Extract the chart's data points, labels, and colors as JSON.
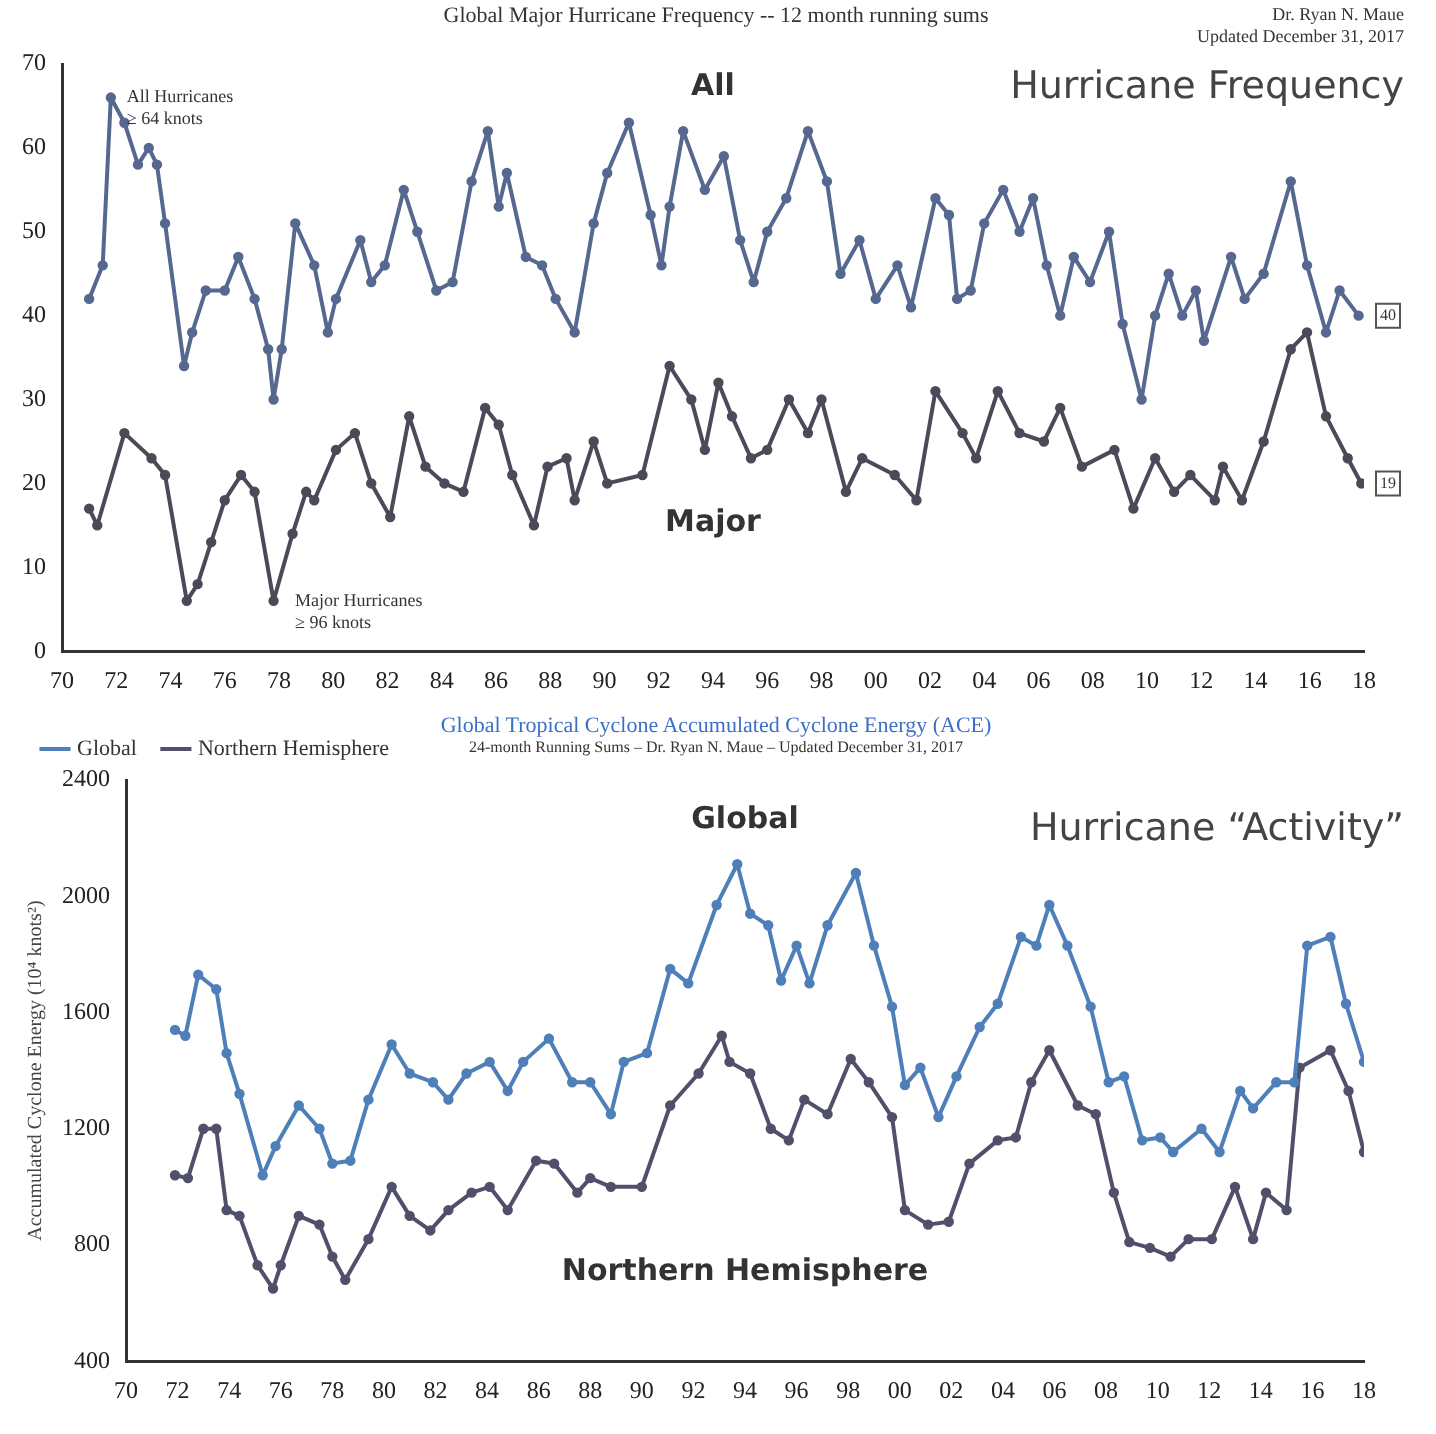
{
  "chart_data": [
    {
      "type": "line",
      "title": "Global Major Hurricane Frequency -- 12 month running sums",
      "marker": "circle",
      "line_style": "solid",
      "xlim": [
        1970,
        2018
      ],
      "xticks": [
        {
          "value": 1970,
          "label": "70"
        },
        {
          "value": 1972,
          "label": "72"
        },
        {
          "value": 1974,
          "label": "74"
        },
        {
          "value": 1976,
          "label": "76"
        },
        {
          "value": 1978,
          "label": "78"
        },
        {
          "value": 1980,
          "label": "80"
        },
        {
          "value": 1982,
          "label": "82"
        },
        {
          "value": 1984,
          "label": "84"
        },
        {
          "value": 1986,
          "label": "86"
        },
        {
          "value": 1988,
          "label": "88"
        },
        {
          "value": 1990,
          "label": "90"
        },
        {
          "value": 1992,
          "label": "92"
        },
        {
          "value": 1994,
          "label": "94"
        },
        {
          "value": 1996,
          "label": "96"
        },
        {
          "value": 1998,
          "label": "98"
        },
        {
          "value": 2000,
          "label": "00"
        },
        {
          "value": 2002,
          "label": "02"
        },
        {
          "value": 2004,
          "label": "04"
        },
        {
          "value": 2006,
          "label": "06"
        },
        {
          "value": 2008,
          "label": "08"
        },
        {
          "value": 2010,
          "label": "10"
        },
        {
          "value": 2012,
          "label": "12"
        },
        {
          "value": 2014,
          "label": "14"
        },
        {
          "value": 2016,
          "label": "16"
        },
        {
          "value": 2018,
          "label": "18"
        }
      ],
      "ylim": [
        0,
        70
      ],
      "yticks": [
        0,
        10,
        20,
        30,
        40,
        50,
        60,
        70
      ],
      "series": [
        {
          "name": "All",
          "color": "#56688f",
          "x": [
            1971.0,
            1971.5,
            1971.8,
            1972.3,
            1972.8,
            1973.2,
            1973.5,
            1973.8,
            1974.5,
            1974.8,
            1975.3,
            1976.0,
            1976.5,
            1977.1,
            1977.6,
            1977.8,
            1978.1,
            1978.6,
            1979.3,
            1979.8,
            1980.1,
            1981.0,
            1981.4,
            1981.9,
            1982.6,
            1983.1,
            1983.8,
            1984.4,
            1985.1,
            1985.7,
            1986.1,
            1986.4,
            1987.1,
            1987.7,
            1988.2,
            1988.9,
            1989.6,
            1990.1,
            1990.9,
            1991.7,
            1992.1,
            1992.4,
            1992.9,
            1993.7,
            1994.4,
            1995.0,
            1995.5,
            1996.0,
            1996.7,
            1997.5,
            1998.2,
            1998.7,
            1999.4,
            2000.0,
            2000.8,
            2001.3,
            2002.2,
            2002.7,
            2003.0,
            2003.5,
            2004.0,
            2004.7,
            2005.3,
            2005.8,
            2006.3,
            2006.8,
            2007.3,
            2007.9,
            2008.6,
            2009.1,
            2009.8,
            2010.3,
            2010.8,
            2011.3,
            2011.8,
            2012.1,
            2013.1,
            2013.6,
            2014.3,
            2015.3,
            2015.9,
            2016.6,
            2017.1,
            2017.8
          ],
          "values": [
            42,
            46,
            66,
            63,
            58,
            60,
            58,
            51,
            34,
            38,
            43,
            43,
            47,
            42,
            36,
            30,
            36,
            51,
            46,
            38,
            42,
            49,
            44,
            46,
            55,
            50,
            43,
            44,
            56,
            62,
            53,
            57,
            47,
            46,
            42,
            38,
            51,
            57,
            63,
            52,
            46,
            53,
            62,
            55,
            59,
            49,
            44,
            50,
            54,
            62,
            56,
            45,
            49,
            42,
            46,
            41,
            54,
            52,
            42,
            43,
            51,
            55,
            50,
            54,
            46,
            40,
            47,
            44,
            50,
            39,
            30,
            40,
            45,
            40,
            43,
            37,
            47,
            42,
            45,
            56,
            46,
            38,
            43,
            40
          ]
        },
        {
          "name": "Major",
          "color": "#4a4a58",
          "x": [
            1971.0,
            1971.3,
            1972.3,
            1973.3,
            1973.8,
            1974.6,
            1975.0,
            1975.5,
            1976.0,
            1976.6,
            1977.1,
            1977.8,
            1978.5,
            1979.0,
            1979.3,
            1980.1,
            1980.8,
            1981.4,
            1982.1,
            1982.8,
            1983.4,
            1984.1,
            1984.8,
            1985.6,
            1986.1,
            1986.6,
            1987.4,
            1987.9,
            1988.6,
            1988.9,
            1989.6,
            1990.1,
            1991.4,
            1992.4,
            1993.2,
            1993.7,
            1994.2,
            1994.7,
            1995.4,
            1996.0,
            1996.8,
            1997.5,
            1998.0,
            1998.9,
            1999.5,
            2000.7,
            2001.5,
            2002.2,
            2003.2,
            2003.7,
            2004.5,
            2005.3,
            2006.2,
            2006.8,
            2007.6,
            2008.8,
            2009.5,
            2010.3,
            2011.0,
            2011.6,
            2012.5,
            2012.8,
            2013.5,
            2014.3,
            2015.3,
            2015.9,
            2016.6,
            2017.4,
            2017.9
          ],
          "values": [
            17,
            15,
            26,
            23,
            21,
            6,
            8,
            13,
            18,
            21,
            19,
            6,
            14,
            19,
            18,
            24,
            26,
            20,
            16,
            28,
            22,
            20,
            19,
            29,
            27,
            21,
            15,
            22,
            23,
            18,
            25,
            20,
            21,
            34,
            30,
            24,
            32,
            28,
            23,
            24,
            30,
            26,
            30,
            19,
            23,
            21,
            18,
            31,
            26,
            23,
            31,
            26,
            25,
            29,
            22,
            24,
            17,
            23,
            19,
            21,
            18,
            22,
            18,
            25,
            36,
            38,
            28,
            23,
            20
          ]
        }
      ],
      "annotations": [
        {
          "text": "All Hurricanes\n≥ 64 knots",
          "x": 1971.8,
          "y": 66
        },
        {
          "text": "Major Hurricanes\n≥ 96 knots",
          "x": 1978,
          "y": 6
        },
        {
          "text": "40",
          "x": 2018,
          "y": 40
        },
        {
          "text": "19",
          "x": 2018,
          "y": 20
        },
        "Dr. Ryan N. Maue",
        "Updated December 31, 2017",
        "Hurricane Frequency"
      ]
    },
    {
      "type": "line",
      "title": "Global Tropical Cyclone Accumulated Cyclone Energy (ACE)",
      "subtitle": "24-month Running Sums – Dr. Ryan N. Maue – Updated December 31, 2017",
      "ylabel": "Accumulated Cyclone Energy (10⁴ knots²)",
      "marker": "circle",
      "line_style": "solid",
      "legend": "top left",
      "xlim": [
        1970,
        2018
      ],
      "xticks": [
        {
          "value": 1970,
          "label": "70"
        },
        {
          "value": 1972,
          "label": "72"
        },
        {
          "value": 1974,
          "label": "74"
        },
        {
          "value": 1976,
          "label": "76"
        },
        {
          "value": 1978,
          "label": "78"
        },
        {
          "value": 1980,
          "label": "80"
        },
        {
          "value": 1982,
          "label": "82"
        },
        {
          "value": 1984,
          "label": "84"
        },
        {
          "value": 1986,
          "label": "86"
        },
        {
          "value": 1988,
          "label": "88"
        },
        {
          "value": 1990,
          "label": "90"
        },
        {
          "value": 1992,
          "label": "92"
        },
        {
          "value": 1994,
          "label": "94"
        },
        {
          "value": 1996,
          "label": "96"
        },
        {
          "value": 1998,
          "label": "98"
        },
        {
          "value": 2000,
          "label": "00"
        },
        {
          "value": 2002,
          "label": "02"
        },
        {
          "value": 2004,
          "label": "04"
        },
        {
          "value": 2006,
          "label": "06"
        },
        {
          "value": 2008,
          "label": "08"
        },
        {
          "value": 2010,
          "label": "10"
        },
        {
          "value": 2012,
          "label": "12"
        },
        {
          "value": 2014,
          "label": "14"
        },
        {
          "value": 2016,
          "label": "16"
        },
        {
          "value": 2018,
          "label": "18"
        }
      ],
      "ylim": [
        400,
        2400
      ],
      "yticks": [
        400,
        800,
        1200,
        1600,
        2000,
        2400
      ],
      "series": [
        {
          "name": "Global",
          "color": "#4f7fb8",
          "x": [
            1971.9,
            1972.3,
            1972.8,
            1973.5,
            1973.9,
            1974.4,
            1975.3,
            1975.8,
            1976.7,
            1977.5,
            1978.0,
            1978.7,
            1979.4,
            1980.3,
            1981.0,
            1981.9,
            1982.5,
            1983.2,
            1984.1,
            1984.8,
            1985.4,
            1986.4,
            1987.3,
            1988.0,
            1988.8,
            1989.3,
            1990.2,
            1991.1,
            1991.8,
            1992.9,
            1993.7,
            1994.2,
            1994.9,
            1995.4,
            1996.0,
            1996.5,
            1997.2,
            1998.3,
            1999.0,
            1999.7,
            2000.2,
            2000.8,
            2001.5,
            2002.2,
            2003.1,
            2003.8,
            2004.7,
            2005.3,
            2005.8,
            2006.5,
            2007.4,
            2008.1,
            2008.7,
            2009.4,
            2010.1,
            2010.6,
            2011.7,
            2012.4,
            2013.2,
            2013.7,
            2014.6,
            2015.3,
            2015.8,
            2016.7,
            2017.3,
            2018.0
          ],
          "values": [
            1540,
            1520,
            1730,
            1680,
            1460,
            1320,
            1040,
            1140,
            1280,
            1200,
            1080,
            1090,
            1300,
            1490,
            1390,
            1360,
            1300,
            1390,
            1430,
            1330,
            1430,
            1510,
            1360,
            1360,
            1250,
            1430,
            1460,
            1750,
            1700,
            1970,
            2110,
            1940,
            1900,
            1710,
            1830,
            1700,
            1900,
            2080,
            1830,
            1620,
            1350,
            1410,
            1240,
            1380,
            1550,
            1630,
            1860,
            1830,
            1970,
            1830,
            1620,
            1360,
            1380,
            1160,
            1170,
            1120,
            1200,
            1120,
            1330,
            1270,
            1360,
            1360,
            1830,
            1860,
            1630,
            1430
          ]
        },
        {
          "name": "Northern Hemisphere",
          "color": "#50506a",
          "x": [
            1971.9,
            1972.4,
            1973.0,
            1973.5,
            1973.9,
            1974.4,
            1975.1,
            1975.7,
            1976.0,
            1976.7,
            1977.5,
            1978.0,
            1978.5,
            1979.4,
            1980.3,
            1981.0,
            1981.8,
            1982.5,
            1983.4,
            1984.1,
            1984.8,
            1985.9,
            1986.6,
            1987.5,
            1988.0,
            1988.8,
            1990.0,
            1991.1,
            1992.2,
            1993.1,
            1993.4,
            1994.2,
            1995.0,
            1995.7,
            1996.3,
            1997.2,
            1998.1,
            1998.8,
            1999.7,
            2000.2,
            2001.1,
            2001.9,
            2002.7,
            2003.8,
            2004.5,
            2005.1,
            2005.8,
            2006.9,
            2007.6,
            2008.3,
            2008.9,
            2009.7,
            2010.5,
            2011.2,
            2012.1,
            2013.0,
            2013.7,
            2014.2,
            2015.0,
            2015.5,
            2016.7,
            2017.4,
            2018.0
          ],
          "values": [
            1040,
            1030,
            1200,
            1200,
            920,
            900,
            730,
            650,
            730,
            900,
            870,
            760,
            680,
            820,
            1000,
            900,
            850,
            920,
            980,
            1000,
            920,
            1090,
            1080,
            980,
            1030,
            1000,
            1000,
            1280,
            1390,
            1520,
            1430,
            1390,
            1200,
            1160,
            1300,
            1250,
            1440,
            1360,
            1240,
            920,
            870,
            880,
            1080,
            1160,
            1170,
            1360,
            1470,
            1280,
            1250,
            980,
            810,
            790,
            760,
            820,
            820,
            1000,
            820,
            980,
            920,
            1410,
            1470,
            1330,
            1120
          ]
        }
      ],
      "annotations": [
        "Hurricane “Activity”"
      ]
    }
  ]
}
